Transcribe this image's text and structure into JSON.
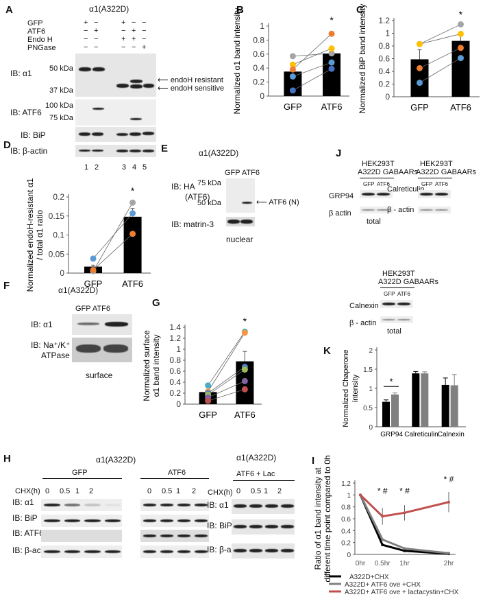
{
  "panels": {
    "A": "A",
    "B": "B",
    "C": "C",
    "D": "D",
    "E": "E",
    "F": "F",
    "G": "G",
    "H": "H",
    "I": "I",
    "J": "J",
    "K": "K"
  },
  "panelA": {
    "title": "α1(A322D)",
    "rows": [
      "GFP",
      "ATF6",
      "Endo H",
      "PNGase"
    ],
    "signs": [
      [
        "+",
        "−",
        "+",
        "−",
        "−"
      ],
      [
        "−",
        "+",
        "−",
        "+",
        "−"
      ],
      [
        "−",
        "−",
        "+",
        "+",
        "−"
      ],
      [
        "−",
        "−",
        "−",
        "−",
        "+"
      ]
    ],
    "signs_note": "",
    "ib": [
      "IB: α1",
      "IB: ATF6",
      "IB: BiP",
      "IB: β-actin"
    ],
    "kda": [
      "50 kDa",
      "37 kDa",
      "100 kDa",
      "75 kDa"
    ],
    "arrows": [
      "endoH resistant",
      "endoH sensitive"
    ],
    "lanes": [
      "1",
      "2",
      "3",
      "4",
      "5"
    ]
  },
  "panelE": {
    "title": "α1(A322D)",
    "cols": "GFP ATF6",
    "ib": [
      "IB: HA",
      "(ATF6)",
      "IB: matrin-3"
    ],
    "kda": [
      "75 kDa",
      "50 kDa"
    ],
    "arrow": "ATF6 (N)",
    "footer": "nuclear"
  },
  "panelF": {
    "title": "α1(A322D)",
    "cols": "GFP ATF6",
    "ib": [
      "IB: α1",
      "IB: Na⁺/K⁺",
      "ATPase"
    ],
    "footer": "surface"
  },
  "panelJ": {
    "header1": "HEK293T",
    "header2": "A322D GABAARs",
    "cols": [
      "GFP",
      "ATF6"
    ],
    "blots": [
      {
        "top": "GRP94",
        "bottom": "β actin"
      },
      {
        "top": "Calreticulin",
        "bottom": "β - actin"
      },
      {
        "top": "Calnexin",
        "bottom": "β - actin"
      }
    ],
    "footer": "total"
  },
  "panelH": {
    "title": "α1(A322D)",
    "groups": [
      "GFP",
      "ATF6"
    ],
    "chx_label": "CHX(h)",
    "times": [
      "0",
      "0.5",
      "1",
      "2"
    ],
    "ib": [
      "IB: α1",
      "IB: BiP",
      "IB: ATF6",
      "IB: β-actin"
    ],
    "right_title": "α1(A322D)",
    "right_group": "ATF6 + Lac",
    "right_ib": [
      "IB: α1",
      "IB: BiP",
      "IB: β-actin"
    ]
  },
  "chart_data": [
    {
      "id": "B",
      "type": "bar",
      "categories": [
        "GFP",
        "ATF6"
      ],
      "values": [
        0.35,
        0.61
      ],
      "errors": [
        0,
        0
      ],
      "ylabel": "Normalized α1 band intensity",
      "ylim": [
        0,
        1
      ],
      "yticks": [
        "0",
        "0.2",
        "0.4",
        "0.6",
        "0.8",
        "1"
      ],
      "significance": [
        "",
        "*"
      ],
      "pairs": [
        {
          "color": "#a5a5a5",
          "values": [
            0.57,
            0.61
          ]
        },
        {
          "color": "#ffc000",
          "values": [
            0.45,
            0.68
          ]
        },
        {
          "color": "#ed7d31",
          "values": [
            0.38,
            0.89
          ]
        },
        {
          "color": "#5b9bd5",
          "values": [
            0.28,
            0.48
          ]
        },
        {
          "color": "#4472c4",
          "values": [
            0.08,
            0.39
          ]
        }
      ]
    },
    {
      "id": "C",
      "type": "bar",
      "categories": [
        "GFP",
        "ATF6"
      ],
      "values": [
        0.59,
        0.88
      ],
      "errors": [
        0.15,
        0.11
      ],
      "ylabel": "Normalized BiP band intensity",
      "ylim": [
        0,
        1.2
      ],
      "yticks": [
        "0",
        "0.2",
        "0.4",
        "0.6",
        "0.8",
        "1",
        "1.2"
      ],
      "significance": [
        "",
        "*"
      ],
      "pairs": [
        {
          "color": "#a5a5a5",
          "values": [
            0.83,
            1.14
          ]
        },
        {
          "color": "#ffc000",
          "values": [
            0.83,
            0.99
          ]
        },
        {
          "color": "#ed7d31",
          "values": [
            0.45,
            0.77
          ]
        },
        {
          "color": "#5b9bd5",
          "values": [
            0.22,
            0.61
          ]
        }
      ]
    },
    {
      "id": "D",
      "type": "bar",
      "categories": [
        "GFP",
        "ATF6"
      ],
      "values": [
        0.017,
        0.148
      ],
      "errors": [
        0.004,
        0.022
      ],
      "ylabel": "Normalized endoH-resistant α1 / total α1 ratio",
      "ylim": [
        0,
        0.2
      ],
      "yticks": [
        "0",
        "0.05",
        "0.1",
        "0.15",
        "0.2"
      ],
      "significance": [
        "",
        "*"
      ],
      "pairs": [
        {
          "color": "#5b9bd5",
          "values": [
            0.038,
            0.157
          ]
        },
        {
          "color": "#a5a5a5",
          "values": [
            0.005,
            0.185
          ]
        },
        {
          "color": "#ed7d31",
          "values": [
            0.008,
            0.103
          ]
        }
      ]
    },
    {
      "id": "G",
      "type": "bar",
      "categories": [
        "GFP",
        "ATF6"
      ],
      "values": [
        0.22,
        0.78
      ],
      "errors": [
        0.03,
        0.18
      ],
      "ylabel": "Normalized surface α1 band intensity",
      "ylim": [
        0,
        1.4
      ],
      "yticks": [
        "0",
        "0.2",
        "0.4",
        "0.6",
        "0.8",
        "1",
        "1.2",
        "1.4"
      ],
      "significance": [
        "",
        "*"
      ],
      "pairs": [
        {
          "color": "#4bacc6",
          "values": [
            0.34,
            1.32
          ]
        },
        {
          "color": "#f79646",
          "values": [
            0.23,
            1.3
          ]
        },
        {
          "color": "#4f81bd",
          "values": [
            0.2,
            0.68
          ]
        },
        {
          "color": "#9bbb59",
          "values": [
            0.17,
            0.63
          ]
        },
        {
          "color": "#8064a2",
          "values": [
            0.12,
            0.42
          ]
        },
        {
          "color": "#c0504d",
          "values": [
            0.06,
            0.27
          ]
        }
      ]
    },
    {
      "id": "K",
      "type": "bar",
      "categories": [
        "GRP94",
        "Calreticulin",
        "Calnexin"
      ],
      "ylabel": "Normalized Chaperone intensity",
      "ylim": [
        0,
        2
      ],
      "yticks": [
        "0",
        "0.5",
        "1",
        "1.5",
        "2"
      ],
      "series": [
        {
          "color": "#000000",
          "values": [
            0.65,
            1.39,
            1.09
          ],
          "errors": [
            0.05,
            0.05,
            0.18
          ]
        },
        {
          "color": "#808080",
          "values": [
            0.84,
            1.39,
            1.08
          ],
          "errors": [
            0.04,
            0.04,
            0.28
          ]
        }
      ],
      "significance": "*"
    },
    {
      "id": "I",
      "type": "line",
      "x": [
        0,
        0.5,
        1,
        2
      ],
      "xticks": [
        "0hr",
        "0.5hr",
        "1hr",
        "2hr"
      ],
      "ylabel": "Ratio of α1 band intensity at different time point compared to 0h",
      "ylim": [
        0,
        1.2
      ],
      "yticks": [
        "0",
        "0.2",
        "0.4",
        "0.6",
        "0.8",
        "1",
        "1.2"
      ],
      "series": [
        {
          "name": "A322D+CHX",
          "color": "#000000",
          "values": [
            1,
            0.16,
            0.06,
            0.01
          ],
          "errors": [
            0,
            0.02,
            0.01,
            0.01
          ]
        },
        {
          "name": "A322D+ ATF6 ove +CHX",
          "color": "#7f7f7f",
          "values": [
            1,
            0.25,
            0.1,
            0.02
          ],
          "errors": [
            0,
            0.03,
            0.03,
            0.01
          ]
        },
        {
          "name": "A322D+ ATF6 ove + lactacystin+CHX",
          "color": "#c0504d",
          "values": [
            1,
            0.64,
            0.7,
            0.88
          ],
          "errors": [
            0,
            0.14,
            0.13,
            0.17
          ]
        }
      ],
      "annotations": [
        "* #",
        "* #",
        "* #"
      ]
    }
  ]
}
